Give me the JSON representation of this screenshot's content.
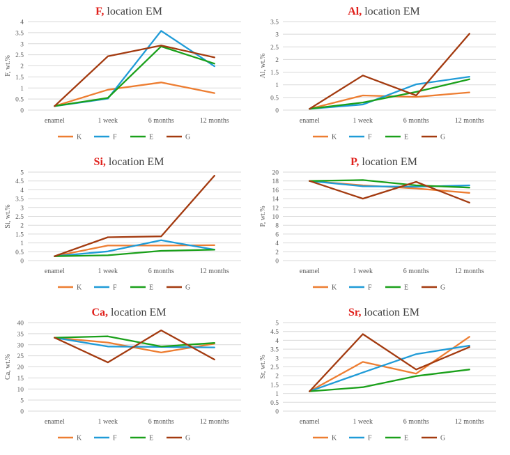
{
  "series_colors": {
    "K": "#ED7D31",
    "F": "#1F9BD7",
    "E": "#1AA01A",
    "G": "#A33A0F"
  },
  "title_element_color": "#E0201B",
  "chart_data": [
    {
      "type": "line",
      "element": "F,",
      "location": "location EM",
      "ylabel": "F, wt.%",
      "categories": [
        "enamel",
        "1 week",
        "6 months",
        "12 months"
      ],
      "ylim": [
        0,
        4
      ],
      "yticks": [
        "0",
        "0.5",
        "1",
        "1.5",
        "2",
        "2.5",
        "3",
        "3.5",
        "4"
      ],
      "series": [
        {
          "name": "K",
          "values": [
            0.18,
            0.92,
            1.25,
            0.77
          ]
        },
        {
          "name": "F",
          "values": [
            0.18,
            0.52,
            3.58,
            1.98
          ]
        },
        {
          "name": "E",
          "values": [
            0.18,
            0.55,
            2.88,
            2.1
          ]
        },
        {
          "name": "G",
          "values": [
            0.18,
            2.43,
            2.92,
            2.38
          ]
        }
      ]
    },
    {
      "type": "line",
      "element": "Al,",
      "location": "location EM",
      "ylabel": "Al, wt.%",
      "categories": [
        "enamel",
        "1 week",
        "6 months",
        "12 months"
      ],
      "ylim": [
        0,
        3.5
      ],
      "yticks": [
        "0",
        "0.5",
        "1",
        "1.5",
        "2",
        "2.5",
        "3",
        "3.5"
      ],
      "series": [
        {
          "name": "K",
          "values": [
            0.05,
            0.58,
            0.52,
            0.7
          ]
        },
        {
          "name": "F",
          "values": [
            0.05,
            0.22,
            1.02,
            1.32
          ]
        },
        {
          "name": "E",
          "values": [
            0.05,
            0.3,
            0.72,
            1.22
          ]
        },
        {
          "name": "G",
          "values": [
            0.05,
            1.37,
            0.58,
            3.02
          ]
        }
      ]
    },
    {
      "type": "line",
      "element": "Si,",
      "location": "location EM",
      "ylabel": "Si, wt.%",
      "categories": [
        "enamel",
        "1 week",
        "6 months",
        "12 months"
      ],
      "ylim": [
        0,
        5
      ],
      "yticks": [
        "0",
        "0.5",
        "1",
        "1.5",
        "2",
        "2.5",
        "3",
        "3.5",
        "4",
        "4.5",
        "5"
      ],
      "series": [
        {
          "name": "K",
          "values": [
            0.25,
            0.85,
            0.85,
            0.87
          ]
        },
        {
          "name": "F",
          "values": [
            0.25,
            0.52,
            1.15,
            0.62
          ]
        },
        {
          "name": "E",
          "values": [
            0.25,
            0.3,
            0.55,
            0.62
          ]
        },
        {
          "name": "G",
          "values": [
            0.25,
            1.32,
            1.37,
            4.8
          ]
        }
      ]
    },
    {
      "type": "line",
      "element": "P,",
      "location": "location EM",
      "ylabel": "P, wt.%",
      "categories": [
        "enamel",
        "1 week",
        "6 months",
        "12 months"
      ],
      "ylim": [
        0,
        20
      ],
      "yticks": [
        "0",
        "2",
        "4",
        "6",
        "8",
        "10",
        "12",
        "14",
        "16",
        "18",
        "20"
      ],
      "series": [
        {
          "name": "K",
          "values": [
            18.0,
            17.0,
            16.3,
            15.3
          ]
        },
        {
          "name": "F",
          "values": [
            18.0,
            16.8,
            16.7,
            17.0
          ]
        },
        {
          "name": "E",
          "values": [
            18.0,
            18.2,
            17.0,
            16.5
          ]
        },
        {
          "name": "G",
          "values": [
            18.0,
            14.0,
            17.8,
            13.1
          ]
        }
      ]
    },
    {
      "type": "line",
      "element": "Ca,",
      "location": "location EM",
      "ylabel": "Ca, wt.%",
      "categories": [
        "enamel",
        "1 week",
        "6 months",
        "12 months"
      ],
      "ylim": [
        0,
        40
      ],
      "yticks": [
        "0",
        "5",
        "10",
        "15",
        "20",
        "25",
        "30",
        "35",
        "40"
      ],
      "series": [
        {
          "name": "K",
          "values": [
            33.2,
            31.0,
            26.5,
            30.5
          ]
        },
        {
          "name": "F",
          "values": [
            33.2,
            29.2,
            29.0,
            28.8
          ]
        },
        {
          "name": "E",
          "values": [
            33.2,
            33.8,
            29.2,
            30.8
          ]
        },
        {
          "name": "G",
          "values": [
            33.2,
            22.0,
            36.5,
            23.3
          ]
        }
      ]
    },
    {
      "type": "line",
      "element": "Sr,",
      "location": "location EM",
      "ylabel": "Sr, wt.%",
      "categories": [
        "enamel",
        "1 week",
        "6 months",
        "12 months"
      ],
      "ylim": [
        0,
        5
      ],
      "yticks": [
        "0",
        "0.5",
        "1",
        "1.5",
        "2",
        "2.5",
        "3",
        "3.5",
        "4",
        "4.5",
        "5"
      ],
      "series": [
        {
          "name": "K",
          "values": [
            1.12,
            2.78,
            2.12,
            4.2
          ]
        },
        {
          "name": "F",
          "values": [
            1.12,
            2.18,
            3.22,
            3.7
          ]
        },
        {
          "name": "E",
          "values": [
            1.12,
            1.35,
            1.98,
            2.35
          ]
        },
        {
          "name": "G",
          "values": [
            1.12,
            4.35,
            2.35,
            3.62
          ]
        }
      ]
    }
  ]
}
